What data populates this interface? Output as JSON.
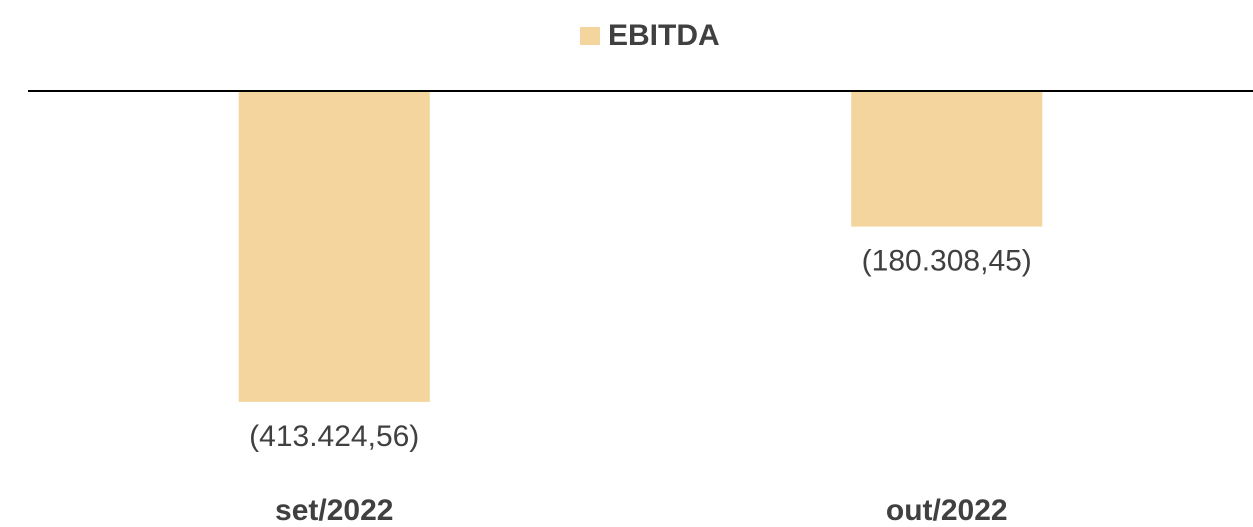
{
  "chart_data": {
    "type": "bar",
    "categories": [
      "set/2022",
      "out/2022"
    ],
    "series": [
      {
        "name": "EBITDA",
        "color": "#f4d59e",
        "values": [
          -413424.56,
          -180308.45
        ],
        "value_labels": [
          "(413.424,56)",
          "(180.308,45)"
        ]
      }
    ],
    "ylim": [
      -500000,
      0
    ],
    "legend": "top"
  }
}
